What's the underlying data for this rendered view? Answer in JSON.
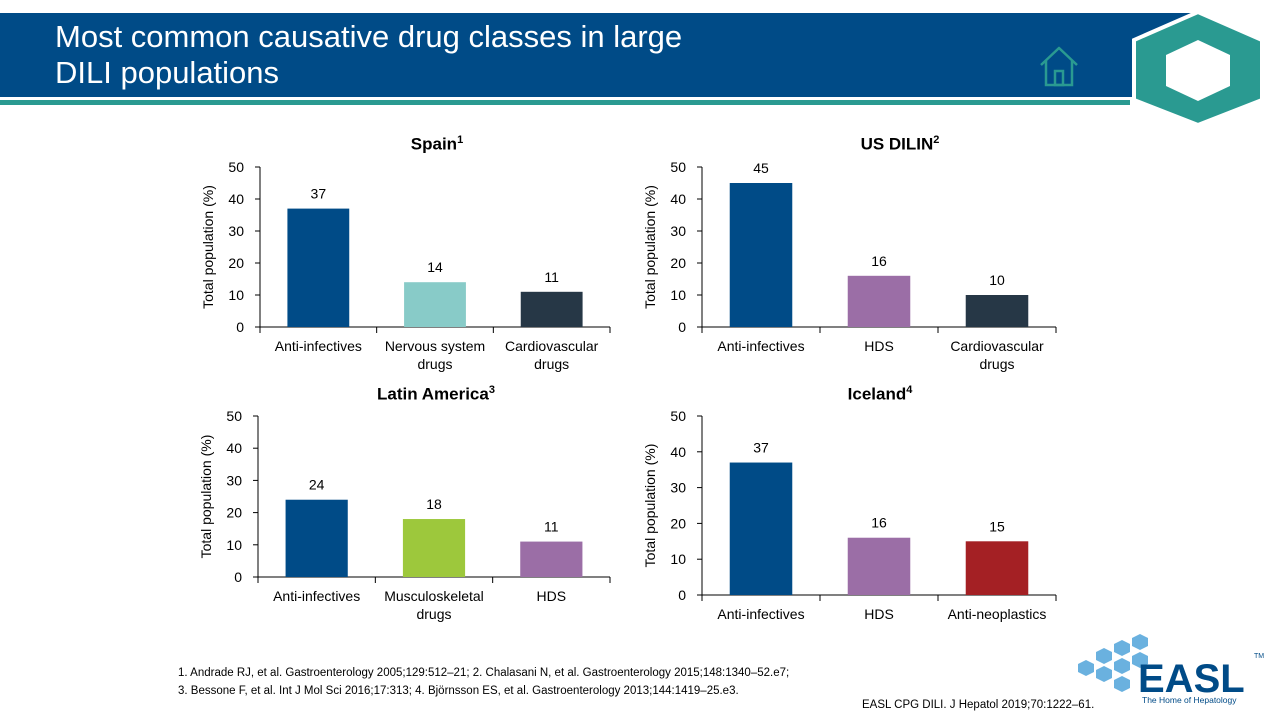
{
  "header": {
    "title_line1": "Most common causative drug classes in large",
    "title_line2": "DILI populations"
  },
  "icons": {
    "home": "home-icon",
    "badge": "hexagon-icon",
    "logo": "easl-logo"
  },
  "colors": {
    "header_blue": "#004b87",
    "teal": "#2a9a91",
    "bar_anti_infectives": "#004b87",
    "bar_nervous_system": "#88cbc8",
    "bar_cardiovascular": "#263746",
    "bar_hds": "#9b6ea6",
    "bar_musculoskeletal": "#9dc83c",
    "bar_anti_neoplastics": "#a42024"
  },
  "chart_data": [
    {
      "type": "bar",
      "title": "Spain",
      "title_sup": "1",
      "ylabel": "Total population (%)",
      "ylim": [
        0,
        50
      ],
      "yticks": [
        0,
        10,
        20,
        30,
        40,
        50
      ],
      "categories": [
        [
          "Anti-infectives"
        ],
        [
          "Nervous system",
          "drugs"
        ],
        [
          "Cardiovascular",
          "drugs"
        ]
      ],
      "values": [
        37,
        14,
        11
      ],
      "colors": [
        "#004b87",
        "#88cbc8",
        "#263746"
      ]
    },
    {
      "type": "bar",
      "title": "US DILIN",
      "title_sup": "2",
      "ylabel": "Total population (%)",
      "ylim": [
        0,
        50
      ],
      "yticks": [
        0,
        10,
        20,
        30,
        40,
        50
      ],
      "categories": [
        [
          "Anti-infectives"
        ],
        [
          "HDS"
        ],
        [
          "Cardiovascular",
          "drugs"
        ]
      ],
      "values": [
        45,
        16,
        10
      ],
      "colors": [
        "#004b87",
        "#9b6ea6",
        "#263746"
      ]
    },
    {
      "type": "bar",
      "title": "Latin America",
      "title_sup": "3",
      "ylabel": "Total population (%)",
      "ylim": [
        0,
        50
      ],
      "yticks": [
        0,
        10,
        20,
        30,
        40,
        50
      ],
      "categories": [
        [
          "Anti-infectives"
        ],
        [
          "Musculoskeletal",
          "drugs"
        ],
        [
          "HDS"
        ]
      ],
      "values": [
        24,
        18,
        11
      ],
      "colors": [
        "#004b87",
        "#9dc83c",
        "#9b6ea6"
      ]
    },
    {
      "type": "bar",
      "title": "Iceland",
      "title_sup": "4",
      "ylabel": "Total population (%)",
      "ylim": [
        0,
        50
      ],
      "yticks": [
        0,
        10,
        20,
        30,
        40,
        50
      ],
      "categories": [
        [
          "Anti-infectives"
        ],
        [
          "HDS"
        ],
        [
          "Anti-neoplastics"
        ]
      ],
      "values": [
        37,
        16,
        15
      ],
      "colors": [
        "#004b87",
        "#9b6ea6",
        "#a42024"
      ]
    }
  ],
  "references": {
    "line1": "1. Andrade RJ, et al. Gastroenterology  2005;129:512–21;  2. Chalasani N, et al. Gastroenterology  2015;148:1340–52.e7;",
    "line2": "3. Bessone F, et al. Int J Mol Sci 2016;17:313;  4. Björnsson ES, et al. Gastroenterology  2013;144:1419–25.e3.",
    "guideline": "EASL CPG DILI.  J Hepatol 2019;70:1222–61."
  },
  "logo": {
    "text": "EASL",
    "tagline": "The Home of Hepatology",
    "tm": "TM"
  }
}
